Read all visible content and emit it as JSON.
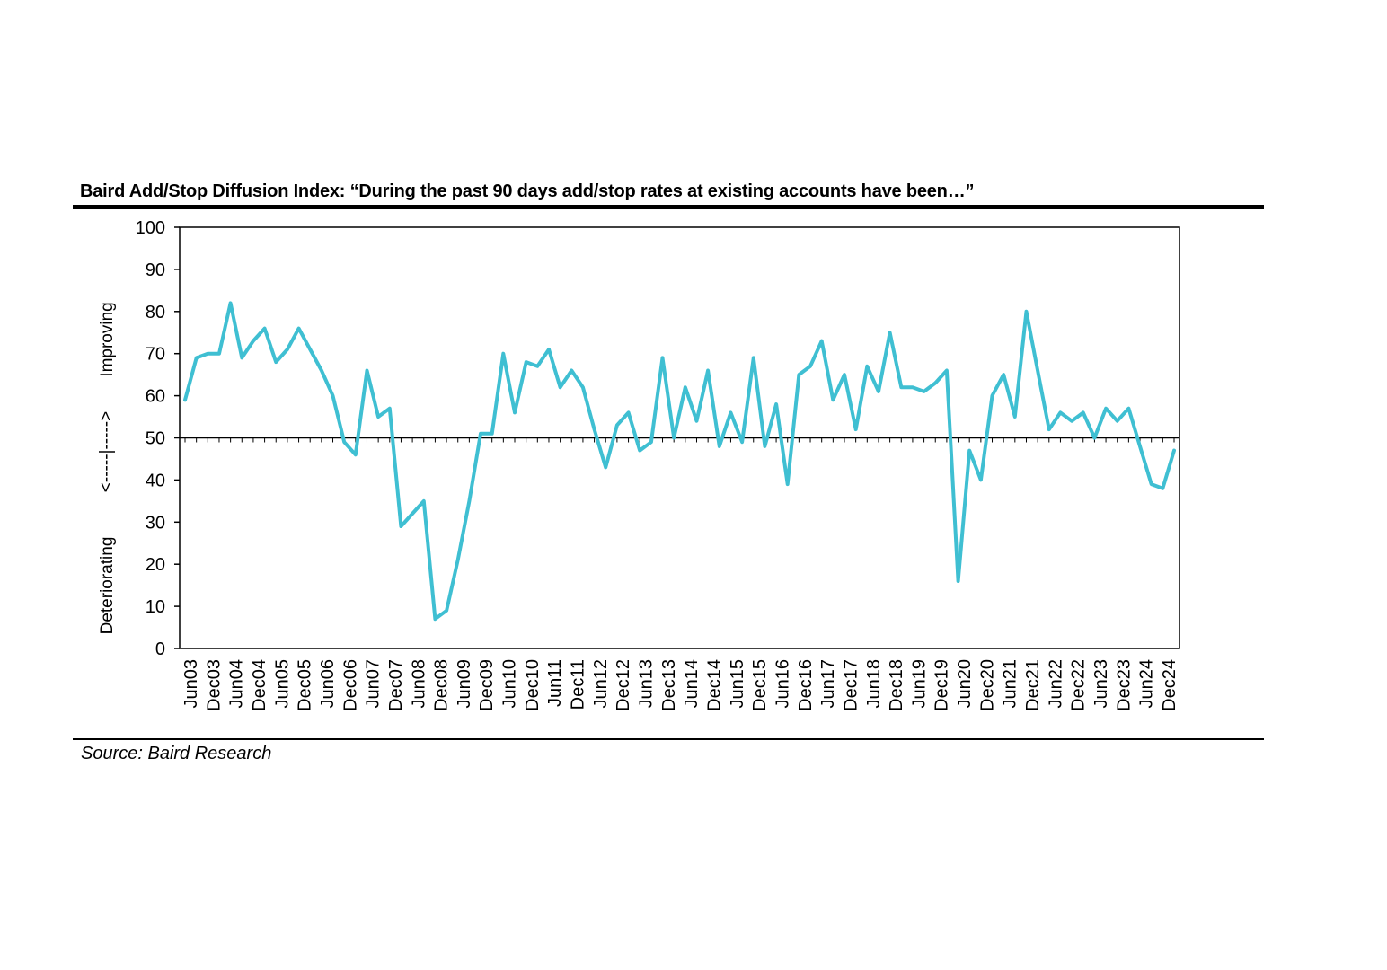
{
  "chart_data": {
    "type": "line",
    "title": "Baird Add/Stop Diffusion Index: “During the past 90 days add/stop rates at existing accounts have been…”",
    "source": "Source: Baird Research",
    "ylim": [
      0,
      100
    ],
    "yticks": [
      0,
      10,
      20,
      30,
      40,
      50,
      60,
      70,
      80,
      90,
      100
    ],
    "reference_line": 50,
    "side_labels": {
      "upper": "Improving",
      "lower": "Deteriorating",
      "arrow": "<-----|----->"
    },
    "x_labels": [
      "Jun03",
      "Dec03",
      "Jun04",
      "Dec04",
      "Jun05",
      "Dec05",
      "Jun06",
      "Dec06",
      "Jun07",
      "Dec07",
      "Jun08",
      "Dec08",
      "Jun09",
      "Dec09",
      "Jun10",
      "Dec10",
      "Jun11",
      "Dec11",
      "Jun12",
      "Dec12",
      "Jun13",
      "Dec13",
      "Jun14",
      "Dec14",
      "Jun15",
      "Dec15",
      "Jun16",
      "Dec16",
      "Jun17",
      "Dec17",
      "Jun18",
      "Dec18",
      "Jun19",
      "Dec19",
      "Jun20",
      "Dec20",
      "Jun21",
      "Dec21",
      "Jun22",
      "Dec22",
      "Jun23",
      "Dec23",
      "Jun24",
      "Dec24"
    ],
    "series": [
      {
        "color": "#3fbfd2",
        "values": [
          59,
          69,
          70,
          70,
          82,
          69,
          73,
          76,
          68,
          71,
          76,
          71,
          66,
          60,
          49,
          46,
          66,
          55,
          57,
          29,
          32,
          35,
          7,
          9,
          21,
          35,
          51,
          51,
          70,
          56,
          68,
          67,
          71,
          62,
          66,
          62,
          52,
          43,
          53,
          56,
          47,
          49,
          69,
          50,
          62,
          54,
          66,
          48,
          56,
          49,
          69,
          48,
          58,
          39,
          65,
          67,
          73,
          59,
          65,
          52,
          67,
          61,
          75,
          62,
          62,
          61,
          63,
          66,
          16,
          47,
          40,
          60,
          65,
          55,
          80,
          66,
          52,
          56,
          54,
          56,
          50,
          57,
          54,
          57,
          48,
          39,
          38,
          47
        ]
      }
    ]
  }
}
